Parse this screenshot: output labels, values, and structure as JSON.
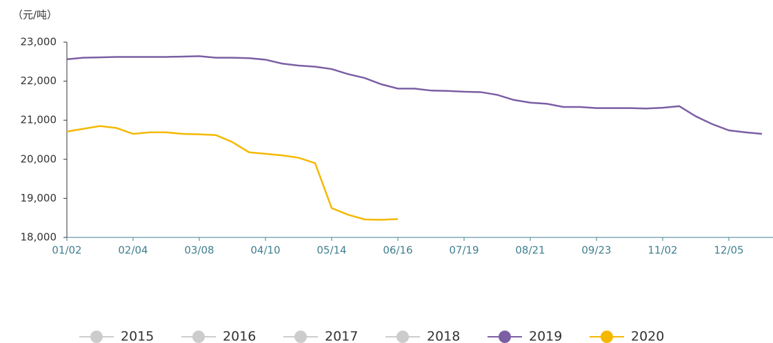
{
  "chart_data": {
    "type": "line",
    "y_axis_label": "（元/吨）",
    "categories": [
      "01/02",
      null,
      null,
      null,
      "02/04",
      null,
      null,
      null,
      "03/08",
      null,
      null,
      null,
      "04/10",
      null,
      null,
      null,
      "05/14",
      null,
      null,
      null,
      "06/16",
      null,
      null,
      null,
      "07/19",
      null,
      null,
      null,
      "08/21",
      null,
      null,
      null,
      "09/23",
      null,
      null,
      null,
      "11/02",
      null,
      null,
      null,
      "12/05",
      null,
      null
    ],
    "series": [
      {
        "name": "2019",
        "color": "#7b5ea3",
        "values": [
          22560,
          22600,
          22610,
          22620,
          22620,
          22620,
          22620,
          22630,
          22640,
          22600,
          22600,
          22590,
          22550,
          22450,
          22400,
          22370,
          22310,
          22180,
          22080,
          21920,
          21810,
          21810,
          21760,
          21750,
          21730,
          21720,
          21650,
          21520,
          21450,
          21420,
          21340,
          21340,
          21310,
          21310,
          21310,
          21300,
          21320,
          21360,
          21100,
          20900,
          20740,
          20690,
          20650
        ]
      },
      {
        "name": "2020",
        "color": "#f5b800",
        "values": [
          20710,
          20780,
          20850,
          20800,
          20650,
          20690,
          20690,
          20650,
          20640,
          20620,
          20440,
          20180,
          20140,
          20100,
          20040,
          19900,
          18750,
          18580,
          18460,
          18450,
          18470,
          null,
          null,
          null,
          null,
          null,
          null,
          null,
          null,
          null,
          null,
          null,
          null,
          null,
          null,
          null,
          null,
          null,
          null,
          null,
          null,
          null,
          null
        ]
      }
    ],
    "inactive_series": [
      {
        "name": "2015",
        "color": "#cccccc"
      },
      {
        "name": "2016",
        "color": "#cccccc"
      },
      {
        "name": "2017",
        "color": "#cccccc"
      },
      {
        "name": "2018",
        "color": "#cccccc"
      }
    ],
    "ylim": [
      18000,
      23000
    ],
    "yticks": [
      {
        "value": 18000,
        "label": "18,000"
      },
      {
        "value": 19000,
        "label": "19,000"
      },
      {
        "value": 20000,
        "label": "20,000"
      },
      {
        "value": 21000,
        "label": "21,000"
      },
      {
        "value": 22000,
        "label": "22,000"
      },
      {
        "value": 23000,
        "label": "23,000"
      }
    ]
  }
}
